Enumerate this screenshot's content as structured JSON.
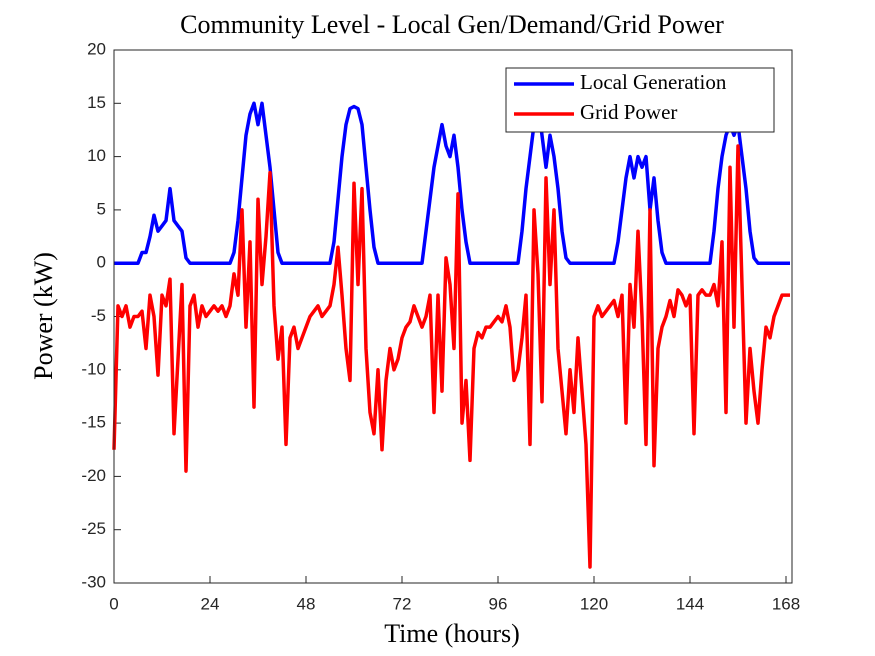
{
  "chart_data": {
    "type": "line",
    "title": "Community Level - Local Gen/Demand/Grid Power",
    "xlabel": "Time (hours)",
    "ylabel": "Power (kW)",
    "legend": "northeast",
    "xlim": [
      0,
      169.5
    ],
    "xticks": [
      0,
      24,
      48,
      72,
      96,
      120,
      144,
      168
    ],
    "ylim": [
      -30,
      20
    ],
    "yticks": [
      -30,
      -25,
      -20,
      -15,
      -10,
      -5,
      0,
      5,
      10,
      15,
      20
    ],
    "x": [
      0,
      1,
      2,
      3,
      4,
      5,
      6,
      7,
      8,
      9,
      10,
      11,
      12,
      13,
      14,
      15,
      16,
      17,
      18,
      19,
      20,
      21,
      22,
      23,
      24,
      25,
      26,
      27,
      28,
      29,
      30,
      31,
      32,
      33,
      34,
      35,
      36,
      37,
      38,
      39,
      40,
      41,
      42,
      43,
      44,
      45,
      46,
      47,
      48,
      49,
      50,
      51,
      52,
      53,
      54,
      55,
      56,
      57,
      58,
      59,
      60,
      61,
      62,
      63,
      64,
      65,
      66,
      67,
      68,
      69,
      70,
      71,
      72,
      73,
      74,
      75,
      76,
      77,
      78,
      79,
      80,
      81,
      82,
      83,
      84,
      85,
      86,
      87,
      88,
      89,
      90,
      91,
      92,
      93,
      94,
      95,
      96,
      97,
      98,
      99,
      100,
      101,
      102,
      103,
      104,
      105,
      106,
      107,
      108,
      109,
      110,
      111,
      112,
      113,
      114,
      115,
      116,
      117,
      118,
      119,
      120,
      121,
      122,
      123,
      124,
      125,
      126,
      127,
      128,
      129,
      130,
      131,
      132,
      133,
      134,
      135,
      136,
      137,
      138,
      139,
      140,
      141,
      142,
      143,
      144,
      145,
      146,
      147,
      148,
      149,
      150,
      151,
      152,
      153,
      154,
      155,
      156,
      157,
      158,
      159,
      160,
      161,
      162,
      163,
      164,
      165,
      166,
      167,
      168,
      169
    ],
    "series": [
      {
        "name": "Local Generation",
        "color": "#0000ff",
        "values": [
          0,
          0,
          0,
          0,
          0,
          0,
          0,
          1,
          1,
          2.5,
          4.5,
          3,
          3.5,
          4,
          7,
          4,
          3.5,
          3,
          0.5,
          0,
          0,
          0,
          0,
          0,
          0,
          0,
          0,
          0,
          0,
          0,
          1,
          4,
          8,
          12,
          14,
          15,
          13,
          15,
          12,
          9,
          5,
          1,
          0,
          0,
          0,
          0,
          0,
          0,
          0,
          0,
          0,
          0,
          0,
          0,
          0,
          2,
          6,
          10,
          13,
          14.5,
          14.7,
          14.5,
          13,
          9,
          5,
          1.5,
          0,
          0,
          0,
          0,
          0,
          0,
          0,
          0,
          0,
          0,
          0,
          0,
          3,
          6,
          9,
          11,
          13,
          11,
          10,
          12,
          9,
          5,
          2,
          0,
          0,
          0,
          0,
          0,
          0,
          0,
          0,
          0,
          0,
          0,
          0,
          0,
          3,
          7,
          10,
          13,
          15,
          12,
          9,
          12,
          10,
          7,
          3,
          0.5,
          0,
          0,
          0,
          0,
          0,
          0,
          0,
          0,
          0,
          0,
          0,
          0,
          2,
          5,
          8,
          10,
          8,
          10,
          9,
          10,
          5,
          8,
          4,
          1,
          0,
          0,
          0,
          0,
          0,
          0,
          0,
          0,
          0,
          0,
          0,
          0,
          3,
          7,
          10,
          12,
          13,
          12,
          13,
          10,
          7,
          3,
          0.5,
          0,
          0,
          0,
          0,
          0,
          0,
          0,
          0,
          0
        ]
      },
      {
        "name": "Grid Power",
        "color": "#ff0000",
        "values": [
          -17.5,
          -4,
          -5,
          -4,
          -6,
          -5,
          -5,
          -4.5,
          -8,
          -3,
          -5,
          -10.5,
          -3,
          -4,
          -1.5,
          -16,
          -9,
          -2,
          -19.5,
          -4,
          -3,
          -6,
          -4,
          -5,
          -4.5,
          -4,
          -4.5,
          -4,
          -5,
          -4,
          -1,
          -3,
          5,
          -6,
          2,
          -13.5,
          6,
          -2,
          2.5,
          8.5,
          -4,
          -9,
          -6,
          -17,
          -7,
          -6,
          -8,
          -7,
          -6,
          -5,
          -4.5,
          -4,
          -5,
          -4.5,
          -4,
          -2,
          1.5,
          -3,
          -8,
          -11,
          7.5,
          -2,
          7,
          -8,
          -14,
          -16,
          -10,
          -17.5,
          -11,
          -8,
          -10,
          -9,
          -7,
          -6,
          -5.5,
          -4,
          -5,
          -6,
          -5,
          -3,
          -14,
          -3,
          -12,
          0.5,
          -2,
          -8,
          6.5,
          -15,
          -11,
          -18.5,
          -8,
          -6.5,
          -7,
          -6,
          -6,
          -5.5,
          -5,
          -5.5,
          -4,
          -6,
          -11,
          -10,
          -7,
          -3,
          -17,
          5,
          -1,
          -13,
          8,
          -2,
          5,
          -8,
          -12,
          -16,
          -10,
          -14,
          -7,
          -12,
          -17,
          -28.5,
          -5,
          -4,
          -5,
          -4.5,
          -4,
          -3.5,
          -5,
          -3,
          -15,
          -2,
          -6,
          3,
          -5,
          -17,
          5,
          -19,
          -8,
          -6,
          -5,
          -3.5,
          -5,
          -2.5,
          -3,
          -4,
          -3,
          -16,
          -3,
          -2.5,
          -3,
          -3,
          -2,
          -4,
          2,
          -14,
          9,
          -6,
          11,
          -2,
          -15,
          -8,
          -12,
          -15,
          -10,
          -6,
          -7,
          -5,
          -4,
          -3,
          -3,
          -3
        ]
      }
    ]
  }
}
